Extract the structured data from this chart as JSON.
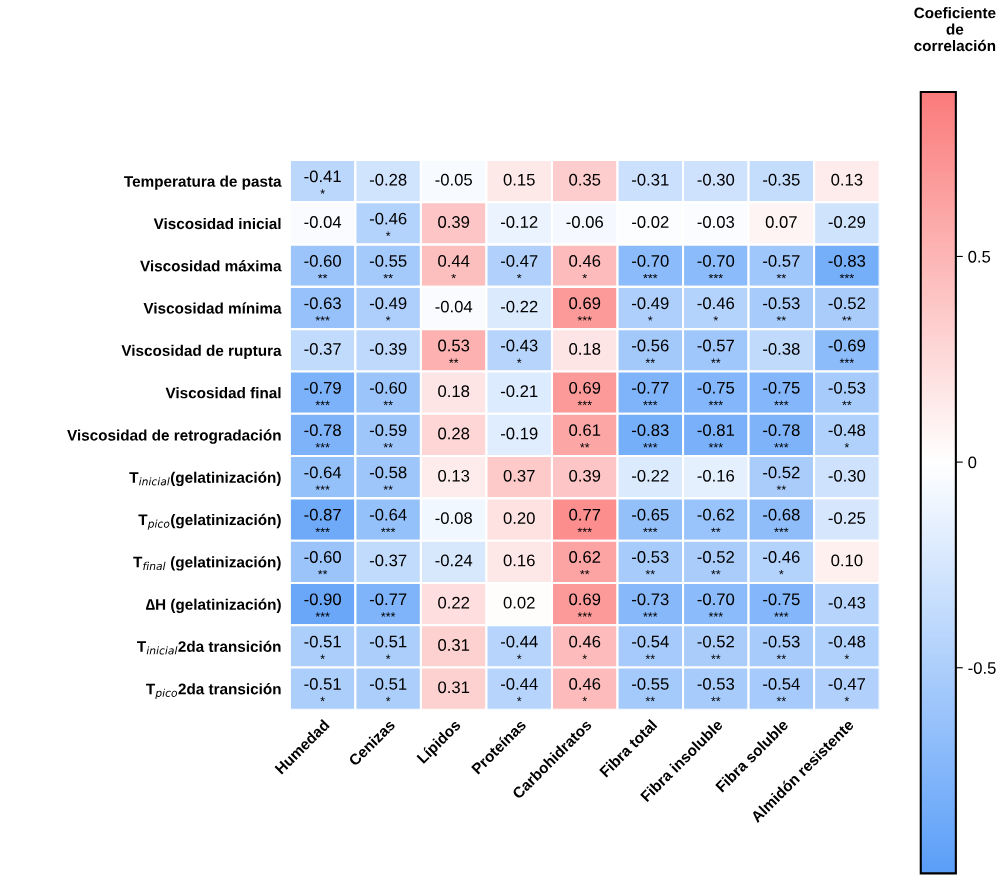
{
  "chart_data": {
    "type": "heatmap",
    "categories": [
      "Humedad",
      "Cenizas",
      "Lípidos",
      "Proteínas",
      "Carbohidratos",
      "Fibra total",
      "Fibra insoluble",
      "Fibra soluble",
      "Almidón resistente"
    ],
    "y_categories": [
      "Temperatura de pasta",
      "Viscosidad inicial",
      "Viscosidad máxima",
      "Viscosidad mínima",
      "Viscosidad de ruptura",
      "Viscosidad final",
      "Viscosidad de retrogradación",
      "T$_{inicial}$(gelatinización)",
      "T$_{pico}$(gelatinización)",
      "T$_{final}$ (gelatinización)",
      "∆H (gelatinización)",
      "T$_{inicial}$2da transición",
      "T$_{pico}$2da transición"
    ],
    "cells": [
      [
        -0.41,
        -0.28,
        -0.05,
        0.15,
        0.35,
        -0.31,
        -0.3,
        -0.35,
        0.13
      ],
      [
        -0.04,
        -0.46,
        0.39,
        -0.12,
        -0.06,
        -0.02,
        -0.03,
        0.07,
        -0.29
      ],
      [
        -0.6,
        -0.55,
        0.44,
        -0.47,
        0.46,
        -0.7,
        -0.7,
        -0.57,
        -0.83
      ],
      [
        -0.63,
        -0.49,
        -0.04,
        -0.22,
        0.69,
        -0.49,
        -0.46,
        -0.53,
        -0.52
      ],
      [
        -0.37,
        -0.39,
        0.53,
        -0.43,
        0.18,
        -0.56,
        -0.57,
        -0.38,
        -0.69
      ],
      [
        -0.79,
        -0.6,
        0.18,
        -0.21,
        0.69,
        -0.77,
        -0.75,
        -0.75,
        -0.53
      ],
      [
        -0.78,
        -0.59,
        0.28,
        -0.19,
        0.61,
        -0.83,
        -0.81,
        -0.78,
        -0.48
      ],
      [
        -0.64,
        -0.58,
        0.13,
        0.37,
        0.39,
        -0.22,
        -0.16,
        -0.52,
        -0.3
      ],
      [
        -0.87,
        -0.64,
        -0.08,
        0.2,
        0.77,
        -0.65,
        -0.62,
        -0.68,
        -0.25
      ],
      [
        -0.6,
        -0.37,
        -0.24,
        0.16,
        0.62,
        -0.53,
        -0.52,
        -0.46,
        0.1
      ],
      [
        -0.9,
        -0.77,
        0.22,
        0.02,
        0.69,
        -0.73,
        -0.7,
        -0.75,
        -0.43
      ],
      [
        -0.51,
        -0.51,
        0.31,
        -0.44,
        0.46,
        -0.54,
        -0.52,
        -0.53,
        -0.48
      ],
      [
        -0.51,
        -0.51,
        0.31,
        -0.44,
        0.46,
        -0.55,
        -0.53,
        -0.54,
        -0.47
      ]
    ],
    "cell_labels": [
      [
        "-0.41\n*",
        "-0.28",
        "-0.05",
        "0.15",
        "0.35",
        "-0.31",
        "-0.30",
        "-0.35",
        "0.13"
      ],
      [
        "-0.04",
        "-0.46\n*",
        "0.39",
        "-0.12",
        "-0.06",
        "-0.02",
        "-0.03",
        "0.07",
        "-0.29"
      ],
      [
        "-0.60\n**",
        "-0.55\n**",
        "0.44\n*",
        "-0.47\n*",
        "0.46\n*",
        "-0.70\n***",
        "-0.70\n***",
        "-0.57\n**",
        "-0.83\n***"
      ],
      [
        "-0.63\n***",
        "-0.49\n*",
        "-0.04",
        "-0.22",
        "0.69\n***",
        "-0.49\n*",
        "-0.46\n*",
        "-0.53\n**",
        "-0.52\n**"
      ],
      [
        "-0.37",
        "-0.39",
        "0.53\n**",
        "-0.43\n*",
        "0.18",
        "-0.56\n**",
        "-0.57\n**",
        "-0.38",
        "-0.69\n***"
      ],
      [
        "-0.79\n***",
        "-0.60\n**",
        "0.18",
        "-0.21",
        "0.69\n***",
        "-0.77\n***",
        "-0.75\n***",
        "-0.75\n***",
        "-0.53\n**"
      ],
      [
        "-0.78\n***",
        "-0.59\n**",
        "0.28",
        "-0.19",
        "0.61\n**",
        "-0.83\n***",
        "-0.81\n***",
        "-0.78\n***",
        "-0.48\n*"
      ],
      [
        "-0.64\n***",
        "-0.58\n**",
        "0.13",
        "0.37",
        "0.39",
        "-0.22",
        "-0.16",
        "-0.52\n**",
        "-0.30"
      ],
      [
        "-0.87\n***",
        "-0.64\n***",
        "-0.08",
        "0.20",
        "0.77\n***",
        "-0.65\n***",
        "-0.62\n**",
        "-0.68\n***",
        "-0.25"
      ],
      [
        "-0.60\n**",
        "-0.37",
        "-0.24",
        "0.16",
        "0.62\n**",
        "-0.53\n**",
        "-0.52\n**",
        "-0.46\n*",
        "0.10"
      ],
      [
        "-0.90\n***",
        "-0.77\n***",
        "0.22",
        "0.02",
        "0.69\n***",
        "-0.73\n***",
        "-0.70\n***",
        "-0.75\n***",
        "-0.43"
      ],
      [
        "-0.51\n*",
        "-0.51\n*",
        "0.31",
        "-0.44\n*",
        "0.46\n*",
        "-0.54\n**",
        "-0.52\n**",
        "-0.53\n**",
        "-0.48\n*"
      ],
      [
        "-0.51\n*",
        "-0.51\n*",
        "0.31",
        "-0.44\n*",
        "0.46\n*",
        "-0.55\n**",
        "-0.53\n**",
        "-0.54\n**",
        "-0.47\n*"
      ]
    ],
    "clabel": "Coeficiente\nde\ncorrelación",
    "clim": [
      -1.0,
      0.9
    ],
    "cticks": [
      0.5,
      0,
      -0.5
    ]
  }
}
